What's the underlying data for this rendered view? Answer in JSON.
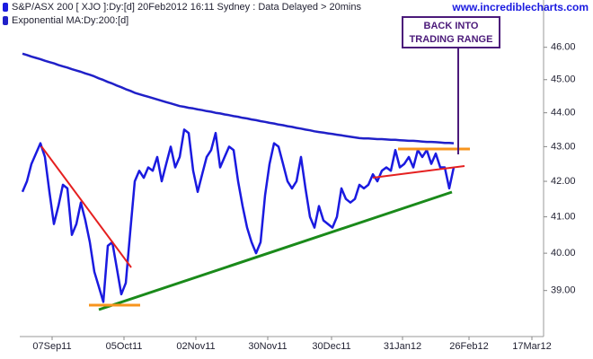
{
  "chart_data": {
    "type": "line",
    "watermark": "www.incrediblecharts.com",
    "annotation": [
      "BACK INTO",
      "TRADING RANGE"
    ],
    "log_scale": true,
    "x": [
      0,
      1,
      2,
      3,
      4,
      5,
      6,
      7,
      8,
      9,
      10,
      11,
      12,
      13,
      14,
      15,
      16,
      17,
      18,
      19,
      20,
      21,
      22,
      23,
      24,
      25,
      26,
      27,
      28,
      29,
      30,
      31,
      32,
      33,
      34,
      35,
      36,
      37,
      38,
      39,
      40,
      41,
      42,
      43,
      44,
      45,
      46,
      47,
      48,
      49,
      50,
      51,
      52,
      53,
      54,
      55,
      56,
      57,
      58,
      59,
      60,
      61,
      62,
      63,
      64,
      65,
      66,
      67,
      68,
      69,
      70,
      71,
      72,
      73,
      74,
      75,
      76,
      77,
      78,
      79,
      80,
      81,
      82,
      83,
      84,
      85,
      86,
      87,
      88,
      89,
      90,
      91,
      92,
      93,
      94,
      95,
      96
    ],
    "series": [
      {
        "name": "S&P/ASX 200 [ XJO ]:Dy:[d]  20Feb2012 16:11 Sydney : Data Delayed > 20mins",
        "color": "#1a1ae0",
        "values": [
          41.7,
          42.0,
          42.5,
          42.8,
          43.1,
          42.7,
          41.7,
          40.8,
          41.3,
          41.9,
          41.8,
          40.5,
          40.8,
          41.4,
          40.9,
          40.3,
          39.5,
          39.1,
          38.7,
          40.2,
          40.3,
          39.6,
          38.9,
          39.2,
          40.6,
          42.0,
          42.3,
          42.1,
          42.4,
          42.3,
          42.7,
          42.0,
          42.5,
          43.0,
          42.4,
          42.7,
          43.5,
          43.4,
          42.3,
          41.7,
          42.2,
          42.7,
          42.9,
          43.4,
          42.4,
          42.7,
          43.0,
          42.9,
          42.0,
          41.3,
          40.7,
          40.3,
          40.0,
          40.3,
          41.6,
          42.5,
          43.1,
          43.0,
          42.5,
          42.0,
          41.8,
          42.0,
          42.7,
          41.8,
          41.0,
          40.7,
          41.3,
          40.9,
          40.8,
          40.7,
          41.0,
          41.8,
          41.5,
          41.4,
          41.5,
          41.9,
          41.8,
          41.9,
          42.2,
          42.0,
          42.3,
          42.4,
          42.3,
          42.9,
          42.4,
          42.5,
          42.7,
          42.4,
          42.9,
          42.7,
          42.9,
          42.5,
          42.8,
          42.4,
          42.4,
          41.8,
          42.4
        ]
      },
      {
        "name": "Exponential MA:Dy:200:[d]",
        "color": "#2020c8",
        "values": [
          45.8,
          45.76,
          45.71,
          45.67,
          45.63,
          45.58,
          45.54,
          45.5,
          45.45,
          45.41,
          45.37,
          45.32,
          45.28,
          45.24,
          45.19,
          45.15,
          45.1,
          45.04,
          44.99,
          44.93,
          44.88,
          44.82,
          44.77,
          44.71,
          44.66,
          44.6,
          44.56,
          44.52,
          44.48,
          44.44,
          44.4,
          44.36,
          44.32,
          44.28,
          44.24,
          44.2,
          44.18,
          44.15,
          44.13,
          44.1,
          44.08,
          44.05,
          44.03,
          44.0,
          43.98,
          43.95,
          43.93,
          43.9,
          43.88,
          43.85,
          43.83,
          43.8,
          43.78,
          43.75,
          43.73,
          43.7,
          43.68,
          43.65,
          43.63,
          43.6,
          43.58,
          43.55,
          43.53,
          43.5,
          43.48,
          43.45,
          43.43,
          43.41,
          43.39,
          43.37,
          43.35,
          43.33,
          43.31,
          43.29,
          43.27,
          43.25,
          43.24,
          43.24,
          43.23,
          43.22,
          43.22,
          43.21,
          43.2,
          43.2,
          43.19,
          43.18,
          43.17,
          43.17,
          43.16,
          43.15,
          43.14,
          43.14,
          43.13,
          43.12,
          43.11,
          43.11,
          43.1
        ]
      }
    ],
    "xlim": [
      -0.6,
      116
    ],
    "xticks": [
      {
        "value": 6.6,
        "label": "07Sep11"
      },
      {
        "value": 22.6,
        "label": "05Oct11"
      },
      {
        "value": 38.6,
        "label": "02Nov11"
      },
      {
        "value": 54.6,
        "label": "30Nov11"
      },
      {
        "value": 68.8,
        "label": "30Dec11"
      },
      {
        "value": 84.6,
        "label": "31Jan12"
      },
      {
        "value": 99.4,
        "label": "26Feb12"
      },
      {
        "value": 113.4,
        "label": "17Mar12"
      }
    ],
    "ylim": [
      37.8,
      47.5
    ],
    "yticks": [
      {
        "value": 39,
        "label": "39.00"
      },
      {
        "value": 40,
        "label": "40.00"
      },
      {
        "value": 41,
        "label": "41.00"
      },
      {
        "value": 42,
        "label": "42.00"
      },
      {
        "value": 43,
        "label": "43.00"
      },
      {
        "value": 44,
        "label": "44.00"
      },
      {
        "value": 45,
        "label": "45.00"
      },
      {
        "value": 46,
        "label": "46.00"
      }
    ]
  }
}
